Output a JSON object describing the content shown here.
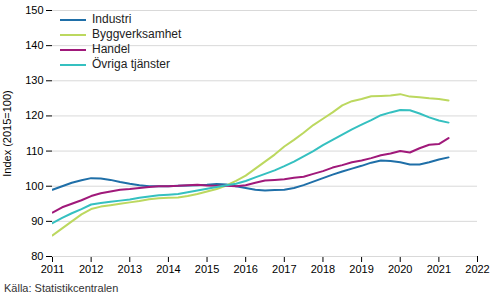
{
  "chart_data": {
    "type": "line",
    "y_label": "Index (2015=100)",
    "caption": "Källa: Statistikcentralen",
    "xlim": [
      2011,
      2022
    ],
    "xticks": [
      2011,
      2012,
      2013,
      2014,
      2015,
      2016,
      2017,
      2018,
      2019,
      2020,
      2021,
      2022
    ],
    "ylim": [
      80,
      150
    ],
    "yticks": [
      80,
      90,
      100,
      110,
      120,
      130,
      140,
      150
    ],
    "grid": true,
    "legend": "top-left",
    "x": [
      2011,
      2011.25,
      2011.5,
      2011.75,
      2012,
      2012.25,
      2012.5,
      2012.75,
      2013,
      2013.25,
      2013.5,
      2013.75,
      2014,
      2014.25,
      2014.5,
      2014.75,
      2015,
      2015.25,
      2015.5,
      2015.75,
      2016,
      2016.25,
      2016.5,
      2016.75,
      2017,
      2017.25,
      2017.5,
      2017.75,
      2018,
      2018.25,
      2018.5,
      2018.75,
      2019,
      2019.25,
      2019.5,
      2019.75,
      2020,
      2020.25,
      2020.5,
      2020.75,
      2021,
      2021.25
    ],
    "series": [
      {
        "name": "Industri",
        "color": "#1f6fa8",
        "values": [
          99,
          100,
          101,
          101.7,
          102.3,
          102.2,
          101.8,
          101.2,
          100.7,
          100.3,
          100,
          100,
          100,
          100.1,
          100.2,
          100.3,
          100.4,
          100.6,
          100.5,
          100,
          99.5,
          99,
          98.8,
          98.9,
          99,
          99.5,
          100.3,
          101.3,
          102.3,
          103.3,
          104.2,
          105,
          105.8,
          106.7,
          107.3,
          107.2,
          106.8,
          106.2,
          106.2,
          106.8,
          107.6,
          108.2
        ]
      },
      {
        "name": "Byggverksamhet",
        "color": "#bcd85f",
        "values": [
          86,
          88,
          90,
          92,
          93.5,
          94.2,
          94.6,
          95,
          95.4,
          95.8,
          96.3,
          96.6,
          96.7,
          96.8,
          97.2,
          97.8,
          98.5,
          99.2,
          100.2,
          101.5,
          103,
          105,
          107,
          109,
          111.3,
          113.2,
          115.2,
          117.4,
          119.2,
          121,
          123,
          124.2,
          124.8,
          125.6,
          125.7,
          125.8,
          126.2,
          125.5,
          125.3,
          125,
          124.8,
          124.4
        ]
      },
      {
        "name": "Handel",
        "color": "#a0197a",
        "values": [
          92.5,
          94,
          95,
          96,
          97.2,
          98,
          98.5,
          99,
          99.2,
          99.5,
          99.8,
          100,
          100,
          100.1,
          100.3,
          100.4,
          100.2,
          100.1,
          100.1,
          100,
          100.3,
          101,
          101.6,
          101.8,
          102,
          102.4,
          102.7,
          103.5,
          104.3,
          105.3,
          106,
          106.8,
          107.3,
          108,
          108.8,
          109.3,
          110,
          109.6,
          110.8,
          111.8,
          112,
          113.7
        ]
      },
      {
        "name": "Övriga tjänster",
        "color": "#35c0c0",
        "values": [
          89.5,
          91,
          92.3,
          93.5,
          94.8,
          95.2,
          95.6,
          95.9,
          96.2,
          96.7,
          97.1,
          97.4,
          97.6,
          97.8,
          98.3,
          98.8,
          99.3,
          99.8,
          100.3,
          100.7,
          101.5,
          102.5,
          103.5,
          104.5,
          105.7,
          107,
          108.5,
          110,
          111.7,
          113.2,
          114.7,
          116.2,
          117.5,
          118.8,
          120.2,
          121,
          121.7,
          121.6,
          120.7,
          119.6,
          118.7,
          118.1
        ]
      }
    ]
  }
}
